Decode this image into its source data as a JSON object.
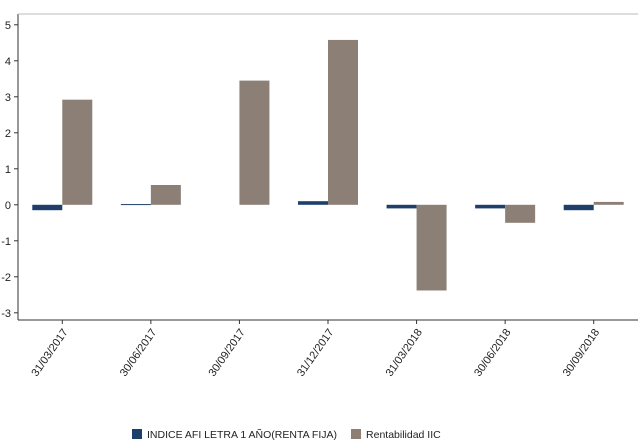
{
  "chart_data": {
    "type": "bar",
    "categories": [
      "31/03/2017",
      "30/06/2017",
      "30/09/2017",
      "31/12/2017",
      "31/03/2018",
      "30/06/2018",
      "30/09/2018"
    ],
    "series": [
      {
        "name": "INDICE AFI LETRA 1 AÑO(RENTA FIJA)",
        "color": "#1f3f6b",
        "values": [
          -0.15,
          0.02,
          0.0,
          0.1,
          -0.1,
          -0.1,
          -0.15
        ]
      },
      {
        "name": "Rentabilidad IIC",
        "color": "#8b7f76",
        "values": [
          2.92,
          0.55,
          3.45,
          4.58,
          -2.38,
          -0.5,
          0.08
        ]
      }
    ],
    "ylim": [
      -3.2,
      5.3
    ],
    "yticks": [
      -3,
      -2,
      -1,
      0,
      1,
      2,
      3,
      4,
      5
    ],
    "ytick_labels": [
      "-3",
      "-2",
      "-1",
      "0",
      "1",
      "2",
      "3",
      "4",
      "5"
    ],
    "grid": false,
    "legend_position": "bottom-center"
  }
}
